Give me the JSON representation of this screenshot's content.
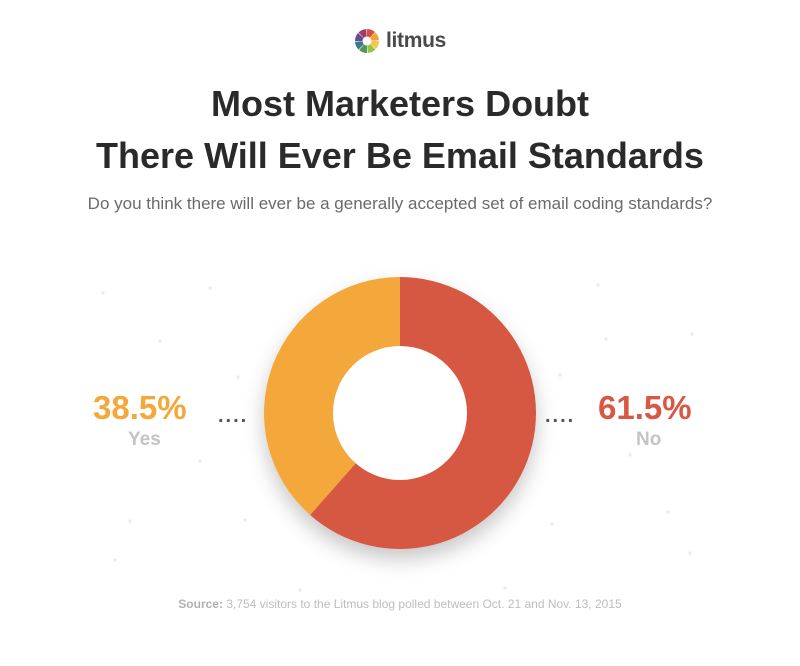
{
  "brand": {
    "name": "litmus",
    "icon": "litmus-wheel-icon",
    "wheel_colors": [
      "#d64f3b",
      "#f2a33a",
      "#f6c64a",
      "#9ac24b",
      "#4f9a5a",
      "#3b7a8c",
      "#6a4b9a",
      "#a33a6a"
    ]
  },
  "header": {
    "title_line1": "Most Marketers Doubt",
    "title_line2": "There Will Ever Be Email Standards",
    "subtitle": "Do you think there will ever be a generally accepted set of email coding standards?"
  },
  "chart_data": {
    "type": "pie",
    "donut": true,
    "series": [
      {
        "name": "Yes",
        "value": 38.5,
        "label": "38.5%",
        "color": "#f4a83a"
      },
      {
        "name": "No",
        "value": 61.5,
        "label": "61.5%",
        "color": "#d75843"
      }
    ],
    "legend": "left-right labels",
    "leader": "...."
  },
  "footer": {
    "source_label": "Source:",
    "source_text": " 3,754 visitors to the Litmus blog polled between Oct. 21 and Nov. 13, 2015"
  }
}
